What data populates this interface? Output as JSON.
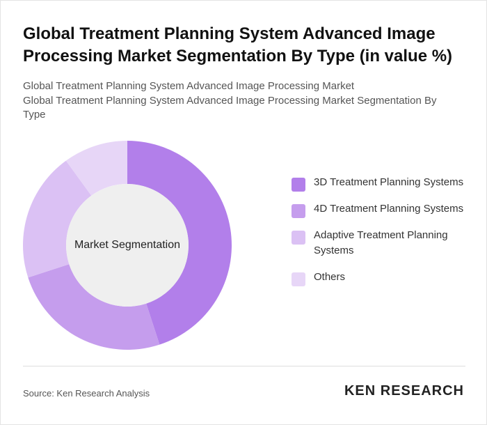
{
  "chart_data": {
    "type": "donut",
    "title": "Global Treatment Planning System Advanced Image Processing Market Segmentation By Type (in value %)",
    "subtitle": [
      "Global Treatment Planning System Advanced Image Processing Market",
      "Global Treatment Planning System Advanced Image Processing Market Segmentation By Type"
    ],
    "center_label": "Market Segmentation",
    "categories": [
      "3D Treatment Planning Systems",
      "4D Treatment Planning Systems",
      "Adaptive Treatment Planning Systems",
      "Others"
    ],
    "values": [
      45,
      25,
      20,
      10
    ],
    "colors": [
      "#b27fea",
      "#c59ded",
      "#dbc1f4",
      "#e7d6f7"
    ]
  },
  "footer": {
    "source": "Source: Ken Research Analysis",
    "logo": "KEN RESEARCH"
  }
}
